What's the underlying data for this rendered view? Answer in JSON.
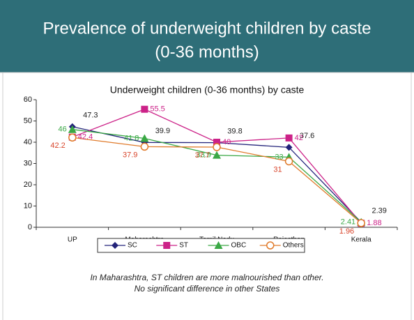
{
  "header": {
    "title": [
      "Prevalence of underweight children by caste",
      "(0-36 months)"
    ]
  },
  "chart_data": {
    "type": "line",
    "title": "Underweight children (0-36 months) by caste",
    "categories": [
      "UP",
      "Maharashtra",
      "Tamil Nadu",
      "Rajasthan",
      "Kerala"
    ],
    "series": [
      {
        "name": "SC",
        "color": "#23237a",
        "label_color": "#222222",
        "marker": "diamond",
        "values": [
          47.3,
          39.9,
          39.8,
          37.6,
          2.39
        ]
      },
      {
        "name": "ST",
        "color": "#cc2288",
        "label_color": "#cc2288",
        "marker": "square",
        "values": [
          42.4,
          55.5,
          40,
          42,
          1.88
        ]
      },
      {
        "name": "OBC",
        "color": "#3aa845",
        "label_color": "#3aa845",
        "marker": "triangle",
        "values": [
          46,
          41.8,
          33.9,
          33,
          2.41
        ]
      },
      {
        "name": "Others",
        "color": "#e07a2a",
        "label_color": "#d8442a",
        "marker": "circle",
        "values": [
          42.2,
          37.9,
          37.7,
          31,
          1.96
        ]
      }
    ],
    "ylim": [
      0,
      60
    ],
    "yticks": [
      0,
      10,
      20,
      30,
      40,
      50,
      60
    ],
    "grid": false,
    "legend": "bottom"
  },
  "footnote": [
    "In Maharashtra, ST children are more malnourished than other.",
    "No significant difference in other States"
  ]
}
